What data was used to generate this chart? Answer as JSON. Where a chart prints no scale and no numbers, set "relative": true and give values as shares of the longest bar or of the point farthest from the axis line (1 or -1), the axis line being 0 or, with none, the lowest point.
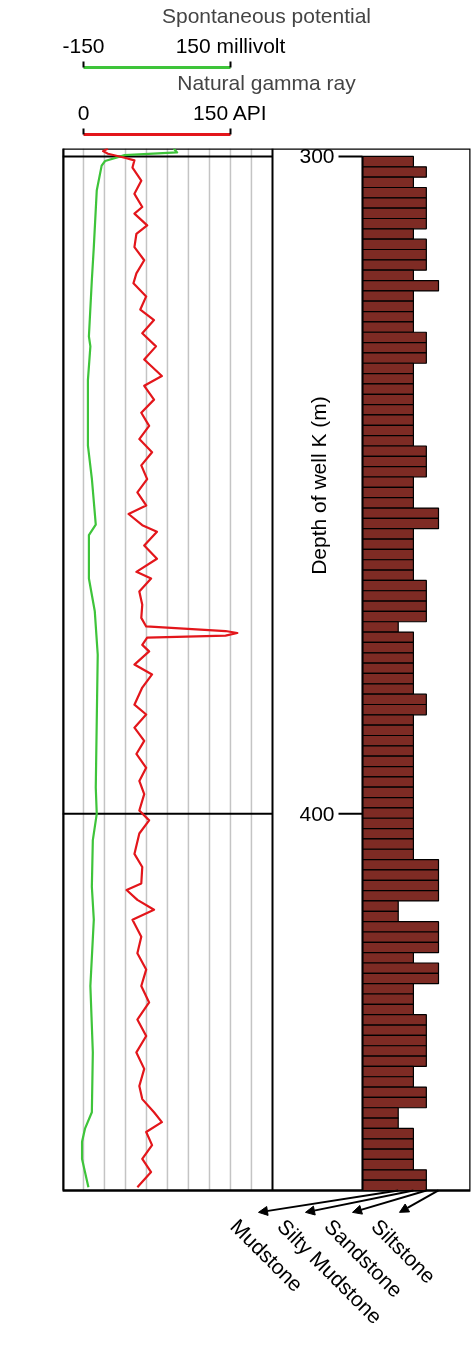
{
  "chart_data": [
    {
      "type": "line",
      "xlabel": "Natural gamma ray",
      "x2label": "Spontaneous potential",
      "ylabel": "Depth of well K (m)",
      "xlim": [
        -21.4,
        192.9
      ],
      "xticks": [
        {
          "value": 0,
          "label": "0"
        },
        {
          "value": 21.4,
          "label": null
        },
        {
          "value": 42.9,
          "label": null
        },
        {
          "value": 64.3,
          "label": null
        },
        {
          "value": 85.7,
          "label": null
        },
        {
          "value": 107.1,
          "label": null
        },
        {
          "value": 128.6,
          "label": null
        },
        {
          "value": 150,
          "label": "150 API"
        },
        {
          "value": 171.4,
          "label": null
        }
      ],
      "x2lim": [
        -192.9,
        235.7
      ],
      "x2ticks": [
        -150,
        {
          "value": 150,
          "label": "150 millivolt"
        }
      ],
      "ylim": [
        457.3,
        298.8
      ],
      "yticks": [
        300,
        400
      ],
      "grid": true,
      "series": [
        {
          "color": "#3ec43a",
          "axis": "x2",
          "x": [
            34,
            41,
            -66,
            -106,
            -113,
            -123,
            -129,
            -133,
            -139,
            -136,
            -141,
            -141,
            -133,
            -125,
            -139,
            -139,
            -127,
            -121,
            -123,
            -125,
            -123,
            -131,
            -133,
            -129,
            -136,
            -131,
            -133,
            -147,
            -153,
            -153,
            -147,
            -140
          ],
          "values": [
            298.8,
            299.4,
            299.8,
            300.7,
            301.4,
            305.2,
            313.8,
            318.8,
            327.4,
            328.9,
            334,
            344,
            349,
            356,
            357.6,
            364.2,
            369.2,
            375.8,
            385.9,
            396,
            400,
            404,
            411.1,
            416.1,
            426.2,
            436.3,
            445.4,
            447.9,
            449.9,
            452.5,
            454.5,
            456.8
          ]
        },
        {
          "color": "#e3161b",
          "x": [
            25,
            20,
            25,
            42,
            52,
            50,
            59,
            52,
            60,
            52,
            65,
            54,
            52,
            62,
            54,
            51,
            64,
            58,
            72,
            60,
            74,
            62,
            80,
            62,
            72,
            59,
            67,
            57,
            70,
            59,
            65,
            55,
            64,
            46,
            60,
            75,
            62,
            75,
            54,
            69,
            57,
            60,
            59,
            64,
            145,
            157,
            145,
            65,
            60,
            67,
            52,
            70,
            60,
            52,
            64,
            52,
            62,
            54,
            64,
            57,
            62,
            57,
            67,
            57,
            52,
            60,
            59,
            44,
            55,
            72,
            50,
            59,
            55,
            64,
            59,
            67,
            55,
            64,
            54,
            62,
            57,
            60,
            72,
            80,
            64,
            70,
            60,
            69,
            55
          ],
          "values": [
            298.8,
            299.2,
            299.6,
            300.2,
            300.6,
            301.7,
            303.7,
            305.7,
            307.7,
            308.7,
            310.5,
            311.8,
            313.8,
            315.8,
            317.8,
            319.3,
            321.3,
            323.3,
            324.9,
            326.9,
            328.9,
            330.9,
            333.4,
            334.9,
            337,
            339,
            341,
            343,
            345,
            347,
            349.1,
            351.1,
            353.1,
            354.4,
            356.1,
            357.1,
            359.2,
            361.2,
            363.2,
            364.2,
            366.2,
            368.2,
            370.2,
            371.5,
            372.2,
            372.5,
            372.9,
            373.2,
            374.3,
            375.3,
            377.3,
            378.8,
            380.8,
            383.4,
            384.9,
            386.9,
            388.9,
            390.9,
            393,
            395,
            397,
            399.5,
            401,
            403,
            406.1,
            408.1,
            410.6,
            411.6,
            413.1,
            414.6,
            416.1,
            418.7,
            421.2,
            423.7,
            426.2,
            428.7,
            431.3,
            433.8,
            436.3,
            438.8,
            441.4,
            443.4,
            445.4,
            446.9,
            448.4,
            450.4,
            452.5,
            454.5,
            456.8
          ]
        }
      ]
    },
    {
      "type": "bar",
      "orientation": "horizontal",
      "relative": true,
      "color": "#7e2b24",
      "categories": [
        null,
        null,
        null,
        null,
        null,
        null,
        null,
        null,
        null,
        null,
        null,
        null,
        null,
        null,
        null,
        null,
        null,
        null,
        null,
        null,
        null,
        null,
        null,
        null,
        null,
        null,
        null,
        null,
        null,
        null,
        null,
        null,
        null,
        null,
        null,
        null,
        null,
        null,
        null,
        null,
        null,
        null,
        null,
        null,
        null,
        null,
        null,
        null,
        null,
        null,
        null,
        null,
        null,
        null,
        null,
        null,
        null,
        null,
        null,
        null,
        null,
        null,
        null,
        null,
        null,
        null,
        null,
        null,
        null,
        null,
        null,
        null,
        null,
        null,
        null,
        null,
        null,
        null,
        null,
        null,
        null,
        null,
        null,
        null,
        null,
        null,
        null,
        null,
        null,
        null,
        null,
        null,
        null,
        null,
        null,
        null,
        null,
        null,
        null,
        null
      ],
      "values": [
        0.67,
        0.84,
        0.67,
        0.84,
        0.84,
        0.84,
        0.84,
        0.67,
        0.84,
        0.84,
        0.84,
        0.67,
        1,
        0.67,
        0.67,
        0.67,
        0.67,
        0.84,
        0.84,
        0.84,
        0.67,
        0.67,
        0.67,
        0.67,
        0.67,
        0.67,
        0.67,
        0.67,
        0.84,
        0.84,
        0.84,
        0.67,
        0.67,
        0.67,
        1,
        1,
        0.67,
        0.67,
        0.67,
        0.67,
        0.67,
        0.84,
        0.84,
        0.84,
        0.84,
        0.47,
        0.67,
        0.67,
        0.67,
        0.67,
        0.67,
        0.67,
        0.84,
        0.84,
        0.67,
        0.67,
        0.67,
        0.67,
        0.67,
        0.67,
        0.67,
        0.67,
        0.67,
        0.67,
        0.67,
        0.67,
        0.67,
        0.67,
        1,
        1,
        1,
        1,
        0.47,
        0.47,
        1,
        1,
        1,
        0.67,
        1,
        1,
        0.67,
        0.67,
        0.67,
        0.84,
        0.84,
        0.84,
        0.84,
        0.84,
        0.67,
        0.67,
        0.84,
        0.84,
        0.47,
        0.47,
        0.67,
        0.67,
        0.67,
        0.67,
        0.84,
        0.84
      ],
      "annotations": [
        "Mudstone",
        "Silty Mudstone",
        "Sandstone",
        "Siltstone"
      ]
    }
  ]
}
